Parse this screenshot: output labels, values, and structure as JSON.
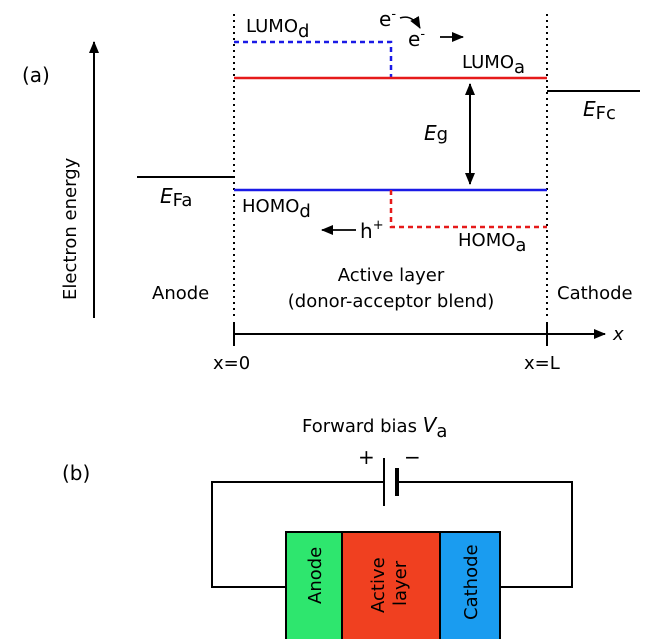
{
  "panel_a": {
    "panel_label": "(a)",
    "axis_label": "Electron energy",
    "x_axis_label": "x",
    "x0_label": "x=0",
    "xL_label": "x=L",
    "lumo_d": {
      "base": "LUMO",
      "sub": "d"
    },
    "lumo_a": {
      "base": "LUMO",
      "sub": "a"
    },
    "homo_d": {
      "base": "HOMO",
      "sub": "d"
    },
    "homo_a": {
      "base": "HOMO",
      "sub": "a"
    },
    "efa": {
      "base": "E",
      "sub": "Fa"
    },
    "efc": {
      "base": "E",
      "sub": "Fc"
    },
    "eg": {
      "base": "E",
      "sub": "g"
    },
    "electron_1": {
      "base": "e",
      "sup": "-"
    },
    "electron_2": {
      "base": "e",
      "sup": "-"
    },
    "hole": {
      "base": "h",
      "sup": "+"
    },
    "anode": "Anode",
    "cathode": "Cathode",
    "active_line1": "Active layer",
    "active_line2": "(donor-acceptor blend)"
  },
  "panel_b": {
    "panel_label": "(b)",
    "bias_text": "Forward bias ",
    "bias_var": "V",
    "bias_sub": "a",
    "plus": "+",
    "minus": "−",
    "layers": {
      "anode": "Anode",
      "active_line1": "Active",
      "active_line2": "layer",
      "cathode": "Cathode"
    }
  },
  "colors": {
    "lumo_donor": "#1a1ae6",
    "lumo_acceptor": "#e61a1a",
    "homo_donor": "#1a1ae6",
    "homo_acceptor": "#e61a1a",
    "anode_fill": "#2ee66e",
    "active_fill": "#f04020",
    "cathode_fill": "#1a9cf0"
  }
}
